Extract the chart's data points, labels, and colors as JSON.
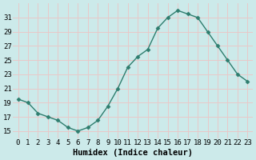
{
  "x": [
    0,
    1,
    2,
    3,
    4,
    5,
    6,
    7,
    8,
    9,
    10,
    11,
    12,
    13,
    14,
    15,
    16,
    17,
    18,
    19,
    20,
    21,
    22,
    23
  ],
  "y": [
    19.5,
    19.0,
    17.5,
    17.0,
    16.5,
    15.5,
    15.0,
    15.5,
    16.5,
    18.5,
    21.0,
    24.0,
    25.5,
    26.5,
    29.5,
    31.0,
    32.0,
    31.5,
    31.0,
    29.0,
    27.0,
    25.0,
    23.0,
    22.0
  ],
  "line_color": "#2e7d6e",
  "marker": "D",
  "markersize": 2.5,
  "linewidth": 1.0,
  "bg_color": "#cceaea",
  "grid_color": "#e8c8c8",
  "xlabel": "Humidex (Indice chaleur)",
  "xlabel_fontsize": 7.5,
  "yticks": [
    15,
    17,
    19,
    21,
    23,
    25,
    27,
    29,
    31
  ],
  "xticks": [
    0,
    1,
    2,
    3,
    4,
    5,
    6,
    7,
    8,
    9,
    10,
    11,
    12,
    13,
    14,
    15,
    16,
    17,
    18,
    19,
    20,
    21,
    22,
    23
  ],
  "xlim": [
    -0.5,
    23.5
  ],
  "ylim": [
    14.0,
    33.0
  ],
  "tick_fontsize": 6.5
}
